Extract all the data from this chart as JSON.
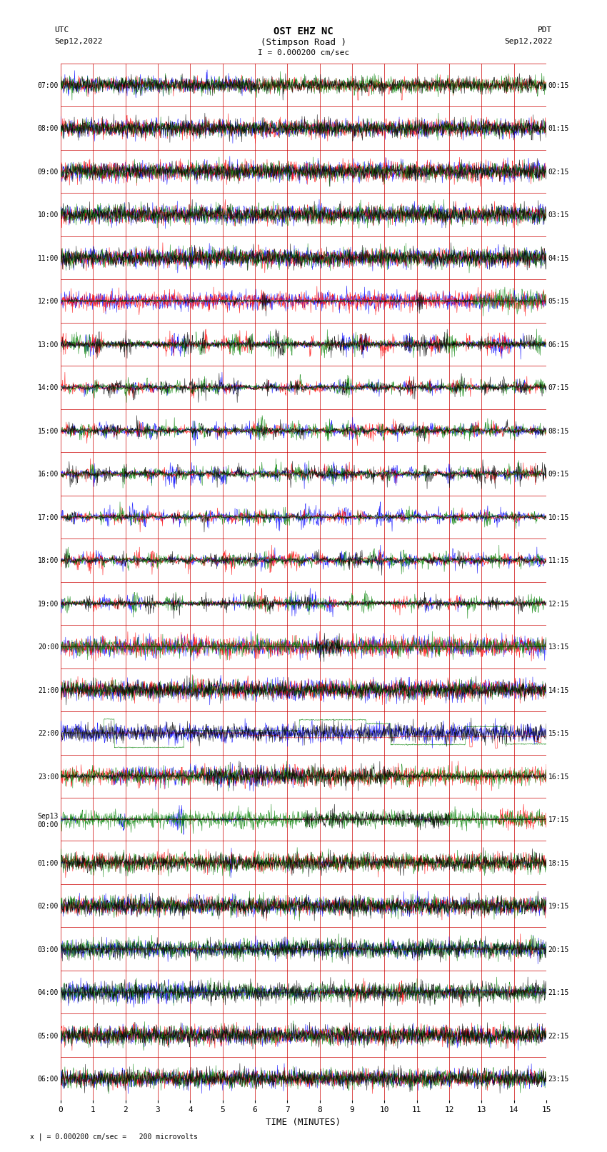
{
  "title_line1": "OST EHZ NC",
  "title_line2": "(Stimpson Road )",
  "title_line3": "I = 0.000200 cm/sec",
  "left_header1": "UTC",
  "left_header2": "Sep12,2022",
  "right_header1": "PDT",
  "right_header2": "Sep12,2022",
  "xlabel": "TIME (MINUTES)",
  "footer": "x | = 0.000200 cm/sec =   200 microvolts",
  "xlim": [
    0,
    15
  ],
  "xticks": [
    0,
    1,
    2,
    3,
    4,
    5,
    6,
    7,
    8,
    9,
    10,
    11,
    12,
    13,
    14,
    15
  ],
  "bg_color": "#ffffff",
  "grid_color": "#cc0000",
  "trace_colors": [
    "blue",
    "red",
    "green",
    "black"
  ],
  "num_rows": 24,
  "left_labels": [
    "07:00",
    "08:00",
    "09:00",
    "10:00",
    "11:00",
    "12:00",
    "13:00",
    "14:00",
    "15:00",
    "16:00",
    "17:00",
    "18:00",
    "19:00",
    "20:00",
    "21:00",
    "22:00",
    "23:00",
    "Sep13\n00:00",
    "01:00",
    "02:00",
    "03:00",
    "04:00",
    "05:00",
    "06:00"
  ],
  "right_labels": [
    "00:15",
    "01:15",
    "02:15",
    "03:15",
    "04:15",
    "05:15",
    "06:15",
    "07:15",
    "08:15",
    "09:15",
    "10:15",
    "11:15",
    "12:15",
    "13:15",
    "14:15",
    "15:15",
    "16:15",
    "17:15",
    "18:15",
    "19:15",
    "20:15",
    "21:15",
    "22:15",
    "23:15"
  ]
}
